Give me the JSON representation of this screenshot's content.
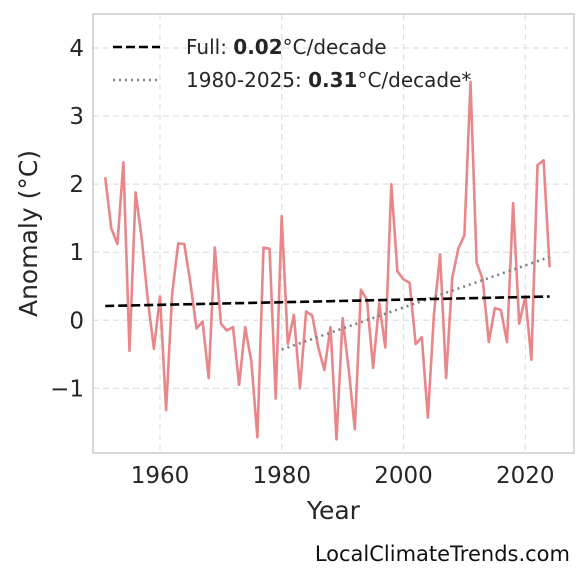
{
  "chart_data": {
    "type": "line",
    "xlabel": "Year",
    "ylabel": "Anomaly (°C)",
    "xlim": [
      1949,
      2028
    ],
    "ylim": [
      -1.95,
      4.5
    ],
    "xticks": [
      1960,
      1980,
      2000,
      2020
    ],
    "xtick_labels": [
      "1960",
      "1980",
      "2000",
      "2020"
    ],
    "yticks": [
      -1,
      0,
      1,
      2,
      3,
      4
    ],
    "ytick_labels": [
      "−1",
      "0",
      "1",
      "2",
      "3",
      "4"
    ],
    "grid": true,
    "legend_position": "top-left",
    "colors": {
      "anomaly": "#e8868a",
      "full_trend": "#000000",
      "recent_trend": "#808080",
      "grid": "#e0e0e0",
      "frame": "#cccccc"
    },
    "series": [
      {
        "x": [
          1951,
          1952,
          1953,
          1954,
          1955,
          1956,
          1957,
          1958,
          1959,
          1960,
          1961,
          1962,
          1963,
          1964,
          1965,
          1966,
          1967,
          1968,
          1969,
          1970,
          1971,
          1972,
          1973,
          1974,
          1975,
          1976,
          1977,
          1978,
          1979,
          1980,
          1981,
          1982,
          1983,
          1984,
          1985,
          1986,
          1987,
          1988,
          1989,
          1990,
          1991,
          1992,
          1993,
          1994,
          1995,
          1996,
          1997,
          1998,
          1999,
          2000,
          2001,
          2002,
          2003,
          2004,
          2005,
          2006,
          2007,
          2008,
          2009,
          2010,
          2011,
          2012,
          2013,
          2014,
          2015,
          2016,
          2017,
          2018,
          2019,
          2020,
          2021,
          2022,
          2023,
          2024
        ],
        "values": [
          2.1,
          1.35,
          1.12,
          2.32,
          -0.45,
          1.88,
          1.2,
          0.3,
          -0.42,
          0.35,
          -1.32,
          0.4,
          1.13,
          1.12,
          0.55,
          -0.12,
          -0.02,
          -0.85,
          1.07,
          -0.05,
          -0.15,
          -0.1,
          -0.95,
          -0.1,
          -0.6,
          -1.72,
          1.07,
          1.05,
          -1.15,
          1.53,
          -0.35,
          0.08,
          -1.0,
          0.13,
          0.07,
          -0.4,
          -0.73,
          -0.1,
          -1.75,
          0.03,
          -0.72,
          -1.6,
          0.45,
          0.3,
          -0.7,
          0.25,
          -0.4,
          2.0,
          0.72,
          0.6,
          0.55,
          -0.35,
          -0.25,
          -1.43,
          0.1,
          0.97,
          -0.85,
          0.62,
          1.05,
          1.25,
          3.5,
          0.85,
          0.6,
          -0.32,
          0.18,
          0.15,
          -0.32,
          1.72,
          -0.05,
          0.35,
          -0.58,
          2.28,
          2.35,
          0.78
        ]
      },
      {
        "name": "Full: 0.02°C/decade",
        "x": [
          1951,
          2024
        ],
        "values": [
          0.21,
          0.35
        ]
      },
      {
        "name": "1980-2025: 0.31°C/decade*",
        "x": [
          1980,
          2024
        ],
        "values": [
          -0.43,
          0.93
        ]
      }
    ],
    "legend": [
      {
        "prefix": "Full: ",
        "value": "0.02",
        "suffix": "°C/decade",
        "style": "dashed"
      },
      {
        "prefix": "1980-2025: ",
        "value": "0.31",
        "suffix": "°C/decade*",
        "style": "dotted"
      }
    ]
  },
  "watermark": "LocalClimateTrends.com"
}
